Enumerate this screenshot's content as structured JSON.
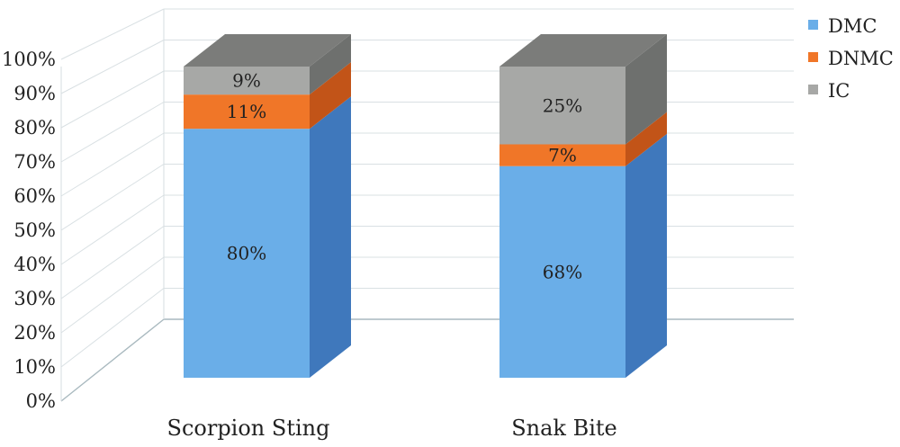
{
  "chart_data": {
    "type": "bar",
    "stacked": true,
    "percent_stacked": true,
    "style": "3d",
    "categories": [
      "Scorpion Sting",
      "Snak Bite"
    ],
    "series": [
      {
        "name": "DMC",
        "values": [
          80,
          68
        ],
        "labels": [
          "80%",
          "68%"
        ],
        "color": "#6aaee8",
        "side_color": "#3f78bc"
      },
      {
        "name": "DNMC",
        "values": [
          11,
          7
        ],
        "labels": [
          "11%",
          "7%"
        ],
        "color": "#f07628",
        "side_color": "#c25418"
      },
      {
        "name": "IC",
        "values": [
          9,
          25
        ],
        "labels": [
          "9%",
          "25%"
        ],
        "color": "#a7a8a6",
        "side_color": "#6e706e"
      }
    ],
    "y_ticks": [
      "0%",
      "10%",
      "20%",
      "30%",
      "40%",
      "50%",
      "60%",
      "70%",
      "80%",
      "90%",
      "100%"
    ],
    "ylim": [
      0,
      100
    ],
    "grid": true,
    "legend": {
      "position": "top-right",
      "entries": [
        "DMC",
        "DNMC",
        "IC"
      ]
    }
  }
}
